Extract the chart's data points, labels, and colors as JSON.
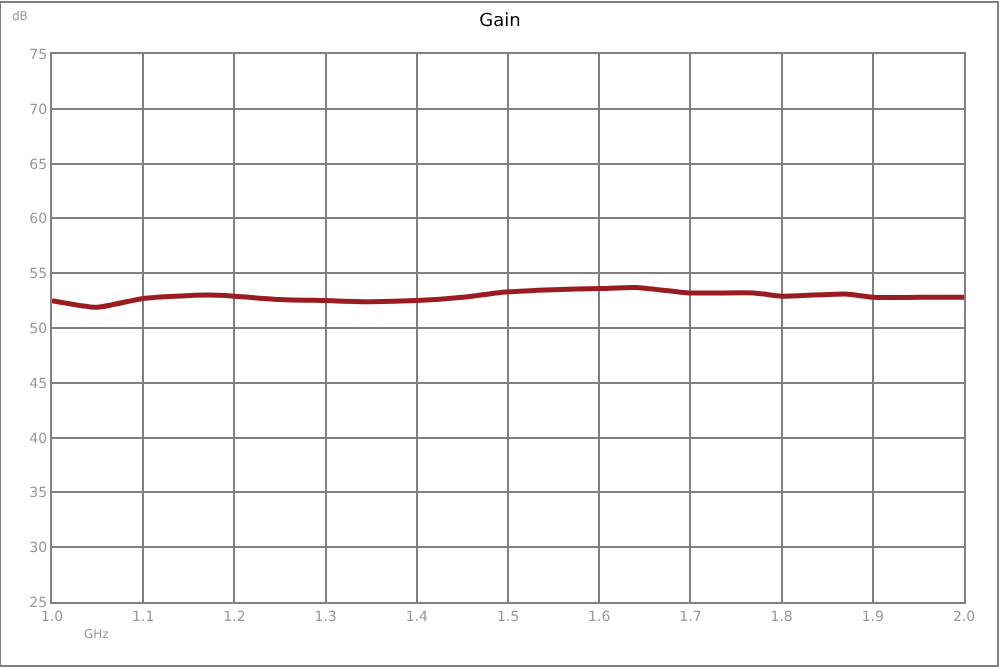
{
  "chart_data": {
    "type": "line",
    "title": "Gain",
    "xlabel": "GHz",
    "ylabel": "dB",
    "x": [
      1.0,
      1.05,
      1.1,
      1.17,
      1.2,
      1.25,
      1.3,
      1.35,
      1.4,
      1.45,
      1.5,
      1.55,
      1.6,
      1.64,
      1.7,
      1.77,
      1.8,
      1.87,
      1.9,
      1.95,
      2.0
    ],
    "series": [
      {
        "color": "#9b1c20",
        "values": [
          52.5,
          51.9,
          52.7,
          53.0,
          52.9,
          52.6,
          52.5,
          52.4,
          52.5,
          52.8,
          53.3,
          53.5,
          53.6,
          53.7,
          53.2,
          53.2,
          52.9,
          53.1,
          52.8,
          52.8,
          52.8
        ]
      }
    ],
    "xlim": [
      1.0,
      2.0
    ],
    "xticks": [
      {
        "value": 1.0,
        "label": "1.0"
      },
      1.1,
      1.2,
      1.3,
      1.4,
      1.5,
      1.6,
      1.7,
      1.8,
      1.9,
      {
        "value": 2.0,
        "label": "2.0"
      }
    ],
    "ylim": [
      25,
      75
    ],
    "yticks": [
      25,
      30,
      35,
      40,
      45,
      50,
      55,
      60,
      65,
      70,
      75
    ],
    "grid": true,
    "legend": false,
    "marker": "none",
    "line_style": "solid"
  }
}
